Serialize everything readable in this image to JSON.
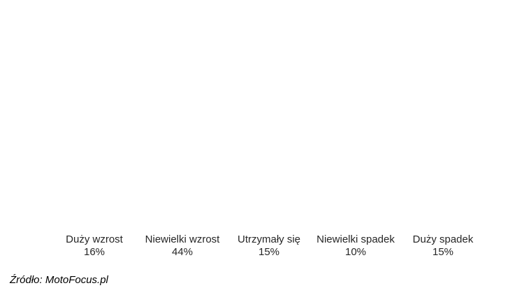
{
  "chart_data": {
    "type": "bar",
    "categories": [
      "Duży wzrost",
      "Niewielki wzrost",
      "Utrzymały się",
      "Niewielki spadek",
      "Duży spadek"
    ],
    "values": [
      16,
      44,
      15,
      10,
      15
    ],
    "value_labels": [
      "16%",
      "44%",
      "15%",
      "10%",
      "15%"
    ],
    "bar_colors": [
      "#FFC000",
      "#FFE699",
      "#5B9BD5",
      "#C2C2C2",
      "#7F7F7F"
    ],
    "title": "",
    "xlabel": "",
    "ylabel": "",
    "ylim": [
      0,
      44
    ],
    "grid": false,
    "legend": false,
    "axes_visible": false
  },
  "footer": {
    "source": "Źródło: MotoFocus.pl"
  }
}
